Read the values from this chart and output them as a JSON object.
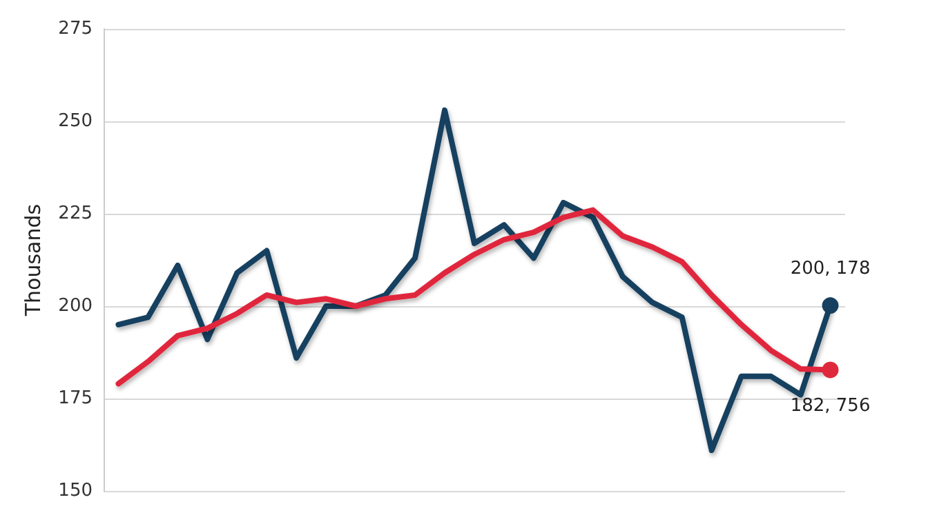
{
  "chart_data": {
    "type": "line",
    "ylabel": "Thousands",
    "categories": [
      null,
      null,
      null,
      null,
      null,
      null,
      null,
      null,
      null,
      null,
      null,
      null,
      null,
      null,
      null,
      null,
      null,
      null,
      null,
      null,
      null,
      null,
      null,
      null,
      null
    ],
    "series": [
      {
        "color": "#173f5f",
        "values": [
          195,
          197,
          211,
          191,
          209,
          215,
          186,
          200,
          200,
          203,
          213,
          253,
          217,
          222,
          213,
          228,
          224,
          208,
          201,
          197,
          161,
          181,
          181,
          176,
          200.178
        ]
      },
      {
        "color": "#e0283c",
        "values": [
          179,
          185,
          192,
          194,
          198,
          203,
          201,
          202,
          200,
          202,
          203,
          209,
          214,
          218,
          220,
          224,
          226,
          219,
          216,
          212,
          203,
          195,
          188,
          183,
          182.756
        ]
      }
    ],
    "annotations": [
      {
        "text": "200, 178",
        "y": 200.178
      },
      {
        "text": "182, 756",
        "y": 182.756
      }
    ],
    "ylim": [
      150,
      275
    ],
    "yticks": [
      150,
      175,
      200,
      225,
      250,
      275
    ],
    "grid": "y",
    "line_style": "solid"
  }
}
